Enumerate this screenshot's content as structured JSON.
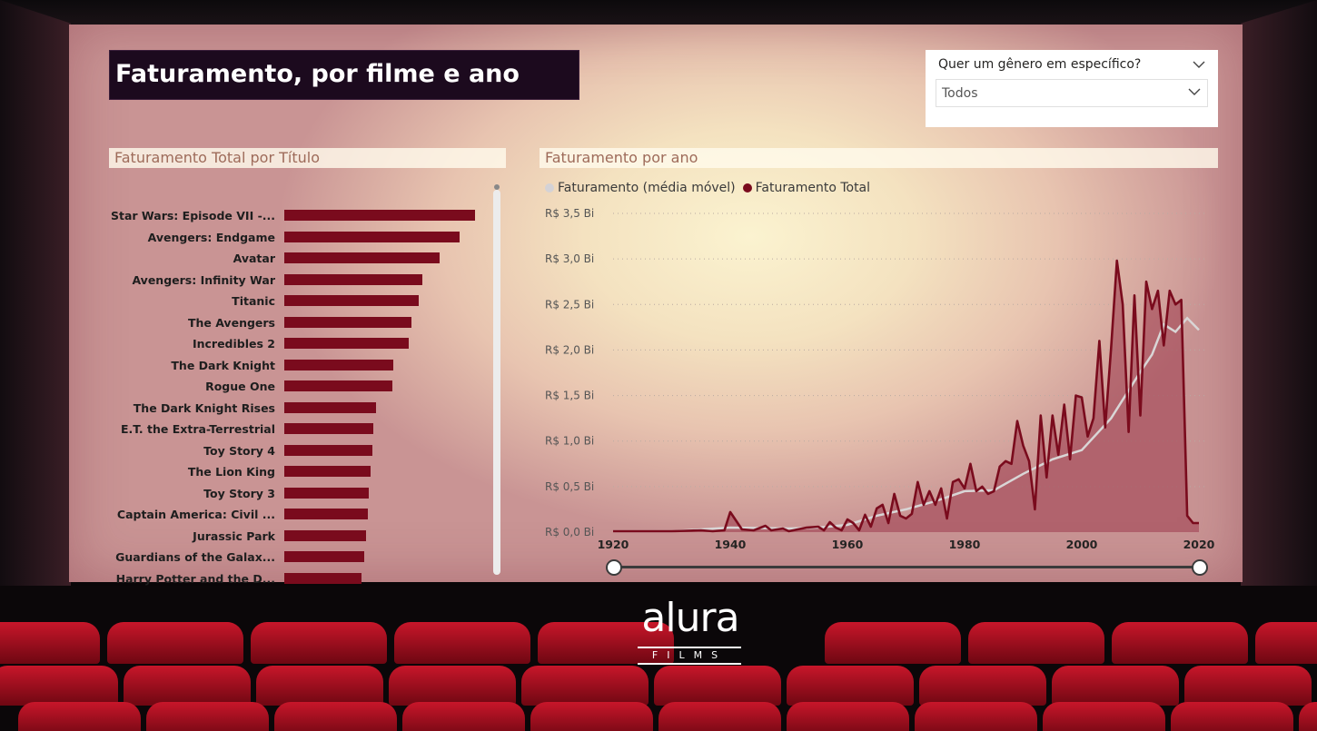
{
  "page_title": "Faturamento, por filme e ano",
  "filter": {
    "label": "Quer um gênero em específico?",
    "value": "Todos"
  },
  "bar_panel": {
    "title": "Faturamento Total por Título"
  },
  "line_panel": {
    "title": "Faturamento por ano",
    "legend": [
      "Faturamento (média móvel)",
      "Faturamento Total"
    ]
  },
  "slider": {
    "range": [
      1920,
      2020
    ]
  },
  "logo": {
    "word": "alura",
    "sub": "FILMS"
  },
  "colors": {
    "bar": "#7a0b1d",
    "total_line": "#7a0b1d",
    "moving_avg_line": "#d9d6d6",
    "area_fill": "#9c3a4c"
  },
  "chart_data": [
    {
      "type": "bar",
      "title": "Faturamento Total por Título",
      "categories": [
        "Star Wars: Episode VII -...",
        "Avengers: Endgame",
        "Avatar",
        "Avengers: Infinity War",
        "Titanic",
        "The Avengers",
        "Incredibles 2",
        "The Dark Knight",
        "Rogue One",
        "The Dark Knight Rises",
        "E.T. the Extra-Terrestrial",
        "Toy Story 4",
        "The Lion King",
        "Toy Story 3",
        "Captain America: Civil ...",
        "Jurassic Park",
        "Guardians of the Galax...",
        "Harry Potter and the D..."
      ],
      "values": [
        936,
        858,
        761,
        679,
        659,
        623,
        609,
        535,
        532,
        448,
        435,
        434,
        423,
        415,
        408,
        402,
        390,
        381
      ]
    },
    {
      "type": "line",
      "title": "Faturamento por ano",
      "xlim": [
        1920,
        2020
      ],
      "ylim": [
        0,
        3.5
      ],
      "yticks": [
        {
          "v": 0,
          "label": "R$ 0,0 Bi"
        },
        {
          "v": 0.5,
          "label": "R$ 0,5 Bi"
        },
        {
          "v": 1.0,
          "label": "R$ 1,0 Bi"
        },
        {
          "v": 1.5,
          "label": "R$ 1,5 Bi"
        },
        {
          "v": 2.0,
          "label": "R$ 2,0 Bi"
        },
        {
          "v": 2.5,
          "label": "R$ 2,5 Bi"
        },
        {
          "v": 3.0,
          "label": "R$ 3,0 Bi"
        },
        {
          "v": 3.5,
          "label": "R$ 3,5 Bi"
        }
      ],
      "xticks": [
        1920,
        1940,
        1960,
        1980,
        2000,
        2020
      ],
      "series": [
        {
          "name": "Faturamento Total",
          "x": [
            1920,
            1925,
            1930,
            1935,
            1937,
            1939,
            1940,
            1942,
            1944,
            1946,
            1947,
            1949,
            1950,
            1953,
            1955,
            1956,
            1957,
            1958,
            1959,
            1960,
            1961,
            1962,
            1963,
            1964,
            1965,
            1966,
            1967,
            1968,
            1969,
            1970,
            1971,
            1972,
            1973,
            1974,
            1975,
            1976,
            1977,
            1978,
            1979,
            1980,
            1981,
            1982,
            1983,
            1984,
            1985,
            1986,
            1987,
            1988,
            1989,
            1990,
            1991,
            1992,
            1993,
            1994,
            1995,
            1996,
            1997,
            1998,
            1999,
            2000,
            2001,
            2002,
            2003,
            2004,
            2005,
            2006,
            2007,
            2008,
            2009,
            2010,
            2011,
            2012,
            2013,
            2014,
            2015,
            2016,
            2017,
            2018,
            2019,
            2020
          ],
          "values": [
            0.01,
            0.01,
            0.01,
            0.02,
            0.01,
            0.02,
            0.22,
            0.03,
            0.02,
            0.07,
            0.02,
            0.04,
            0.01,
            0.05,
            0.06,
            0.02,
            0.11,
            0.05,
            0.02,
            0.14,
            0.1,
            0.02,
            0.19,
            0.06,
            0.26,
            0.3,
            0.1,
            0.42,
            0.18,
            0.15,
            0.2,
            0.55,
            0.3,
            0.45,
            0.3,
            0.48,
            0.15,
            0.55,
            0.58,
            0.48,
            0.75,
            0.45,
            0.5,
            0.42,
            0.45,
            0.72,
            0.78,
            0.75,
            1.22,
            0.95,
            0.78,
            0.25,
            1.28,
            0.6,
            1.28,
            0.85,
            1.4,
            0.8,
            1.5,
            1.48,
            1.05,
            1.25,
            2.1,
            1.15,
            2.02,
            2.98,
            2.5,
            1.1,
            2.6,
            1.28,
            2.75,
            2.45,
            2.65,
            2.05,
            2.65,
            2.5,
            2.55,
            0.18,
            0.1,
            0.1
          ]
        },
        {
          "name": "Faturamento (média móvel)",
          "x": [
            1920,
            1930,
            1940,
            1950,
            1955,
            1960,
            1965,
            1970,
            1975,
            1980,
            1985,
            1990,
            1995,
            2000,
            2005,
            2010,
            2012,
            2014,
            2016,
            2018,
            2020
          ],
          "values": [
            0.01,
            0.01,
            0.05,
            0.04,
            0.05,
            0.08,
            0.18,
            0.25,
            0.34,
            0.45,
            0.46,
            0.64,
            0.8,
            0.9,
            1.25,
            1.76,
            1.95,
            2.28,
            2.2,
            2.35,
            2.22
          ]
        }
      ]
    }
  ]
}
